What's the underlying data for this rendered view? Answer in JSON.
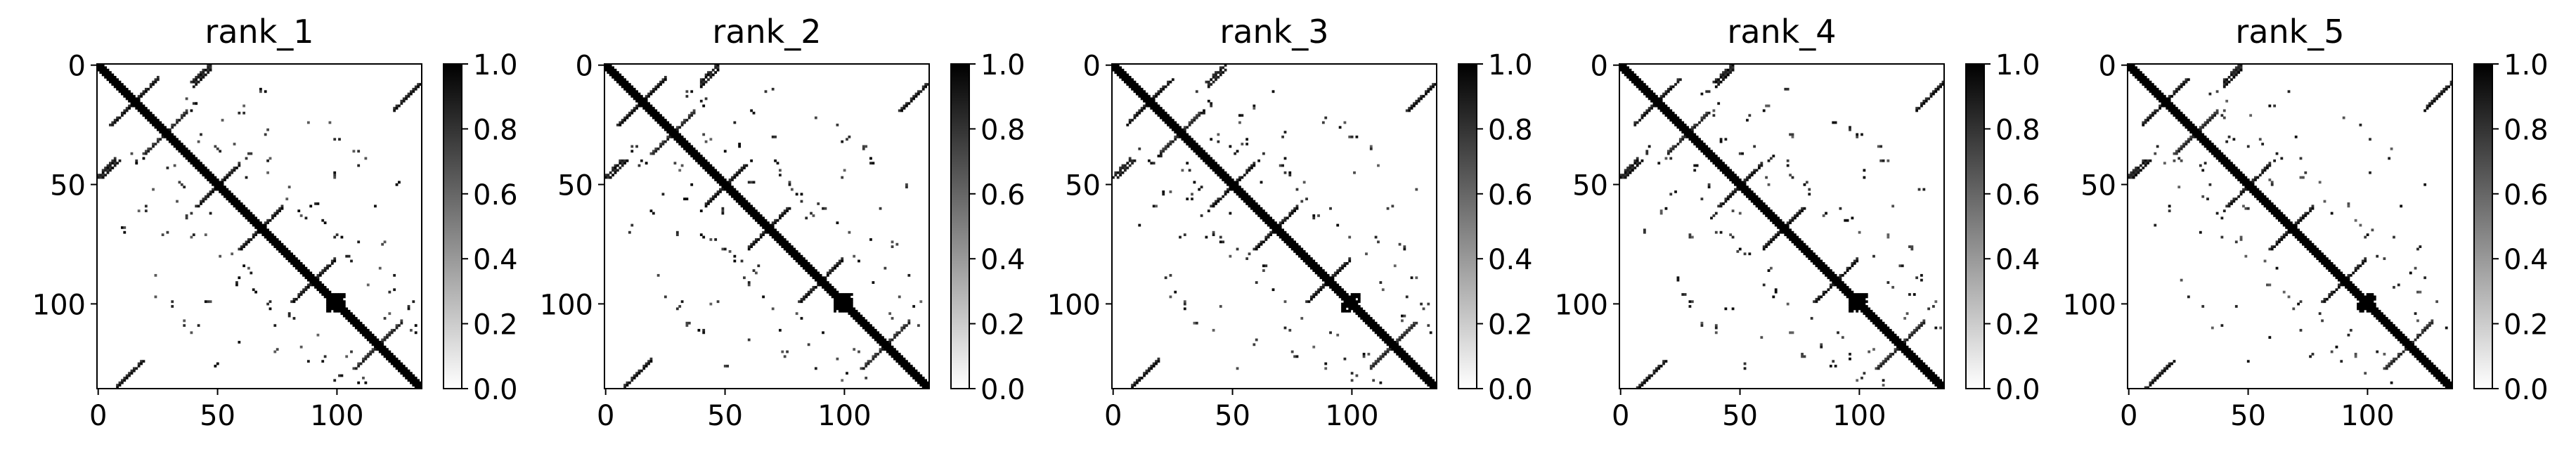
{
  "chart_data": [
    {
      "type": "heatmap",
      "title": "rank_1",
      "matrix_size": 136,
      "x_ticks": [
        0,
        50,
        100
      ],
      "y_ticks": [
        0,
        50,
        100
      ],
      "colorbar": {
        "min": 0.0,
        "max": 1.0,
        "ticks": [
          "0.0",
          "0.2",
          "0.4",
          "0.6",
          "0.8",
          "1.0"
        ]
      },
      "colormap": "gray_r",
      "contact_blocks": [
        {
          "r0": 0,
          "r1": 136,
          "c0": 0,
          "c1": 136,
          "kind": "diagonal",
          "value": 1.0
        },
        {
          "r0": 6,
          "r1": 26,
          "c0": 6,
          "c1": 26,
          "kind": "anti",
          "value": 1.0
        },
        {
          "r0": 40,
          "r1": 48,
          "c0": 0,
          "c1": 10,
          "kind": "anti",
          "value": 1.0
        },
        {
          "r0": 0,
          "r1": 10,
          "c0": 40,
          "c1": 48,
          "kind": "anti",
          "value": 1.0
        },
        {
          "r0": 20,
          "r1": 38,
          "c0": 20,
          "c1": 38,
          "kind": "anti",
          "value": 0.9
        },
        {
          "r0": 42,
          "r1": 60,
          "c0": 42,
          "c1": 60,
          "kind": "anti",
          "value": 1.0
        },
        {
          "r0": 60,
          "r1": 78,
          "c0": 60,
          "c1": 78,
          "kind": "anti",
          "value": 1.0
        },
        {
          "r0": 82,
          "r1": 100,
          "c0": 82,
          "c1": 100,
          "kind": "anti",
          "value": 1.0
        },
        {
          "r0": 96,
          "r1": 104,
          "c0": 96,
          "c1": 104,
          "kind": "block",
          "value": 1.0
        },
        {
          "r0": 108,
          "r1": 128,
          "c0": 108,
          "c1": 128,
          "kind": "anti",
          "value": 0.9
        },
        {
          "r0": 124,
          "r1": 136,
          "c0": 8,
          "c1": 20,
          "kind": "anti",
          "value": 1.0
        },
        {
          "r0": 8,
          "r1": 20,
          "c0": 124,
          "c1": 136,
          "kind": "anti",
          "value": 1.0
        }
      ]
    },
    {
      "type": "heatmap",
      "title": "rank_2",
      "matrix_size": 136,
      "x_ticks": [
        0,
        50,
        100
      ],
      "y_ticks": [
        0,
        50,
        100
      ],
      "colorbar": {
        "min": 0.0,
        "max": 1.0,
        "ticks": [
          "0.0",
          "0.2",
          "0.4",
          "0.6",
          "0.8",
          "1.0"
        ]
      },
      "colormap": "gray_r"
    },
    {
      "type": "heatmap",
      "title": "rank_3",
      "matrix_size": 136,
      "x_ticks": [
        0,
        50,
        100
      ],
      "y_ticks": [
        0,
        50,
        100
      ],
      "colorbar": {
        "min": 0.0,
        "max": 1.0,
        "ticks": [
          "0.0",
          "0.2",
          "0.4",
          "0.6",
          "0.8",
          "1.0"
        ]
      },
      "colormap": "gray_r"
    },
    {
      "type": "heatmap",
      "title": "rank_4",
      "matrix_size": 136,
      "x_ticks": [
        0,
        50,
        100
      ],
      "y_ticks": [
        0,
        50,
        100
      ],
      "colorbar": {
        "min": 0.0,
        "max": 1.0,
        "ticks": [
          "0.0",
          "0.2",
          "0.4",
          "0.6",
          "0.8",
          "1.0"
        ]
      },
      "colormap": "gray_r"
    },
    {
      "type": "heatmap",
      "title": "rank_5",
      "matrix_size": 136,
      "x_ticks": [
        0,
        50,
        100
      ],
      "y_ticks": [
        0,
        50,
        100
      ],
      "colorbar": {
        "min": 0.0,
        "max": 1.0,
        "ticks": [
          "0.0",
          "0.2",
          "0.4",
          "0.6",
          "0.8",
          "1.0"
        ]
      },
      "colormap": "gray_r"
    }
  ]
}
